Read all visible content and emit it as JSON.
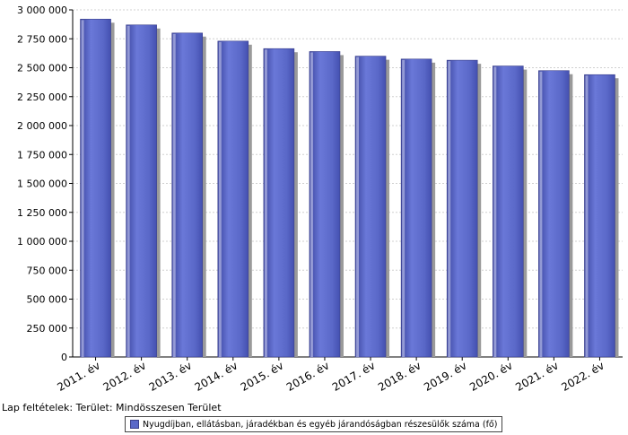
{
  "chart_data": {
    "type": "bar",
    "categories": [
      "2011. év",
      "2012. év",
      "2013. év",
      "2014. év",
      "2015. év",
      "2016. év",
      "2017. év",
      "2018. év",
      "2019. év",
      "2020. év",
      "2021. év",
      "2022. év"
    ],
    "series": [
      {
        "name": "Nyugdíjban, ellátásban, járadékban és egyéb járandóságban részesülők száma (fő)",
        "values": [
          2920000,
          2870000,
          2800000,
          2730000,
          2665000,
          2640000,
          2600000,
          2575000,
          2565000,
          2515000,
          2475000,
          2440000
        ],
        "color": "#5a68c8"
      }
    ],
    "ylim": [
      0,
      3000000
    ],
    "yticks": [
      0,
      250000,
      500000,
      750000,
      1000000,
      1250000,
      1500000,
      1750000,
      2000000,
      2250000,
      2500000,
      2750000,
      3000000
    ],
    "ytick_labels": [
      "0",
      "250 000",
      "500 000",
      "750 000",
      "1 000 000",
      "1 250 000",
      "1 500 000",
      "1 750 000",
      "2 000 000",
      "2 250 000",
      "2 500 000",
      "2 750 000",
      "3 000 000"
    ],
    "grid": true,
    "legend_position": "bottom"
  },
  "footer": {
    "filter_text": "Lap feltételek: Terület: Mindösszesen Terület"
  }
}
